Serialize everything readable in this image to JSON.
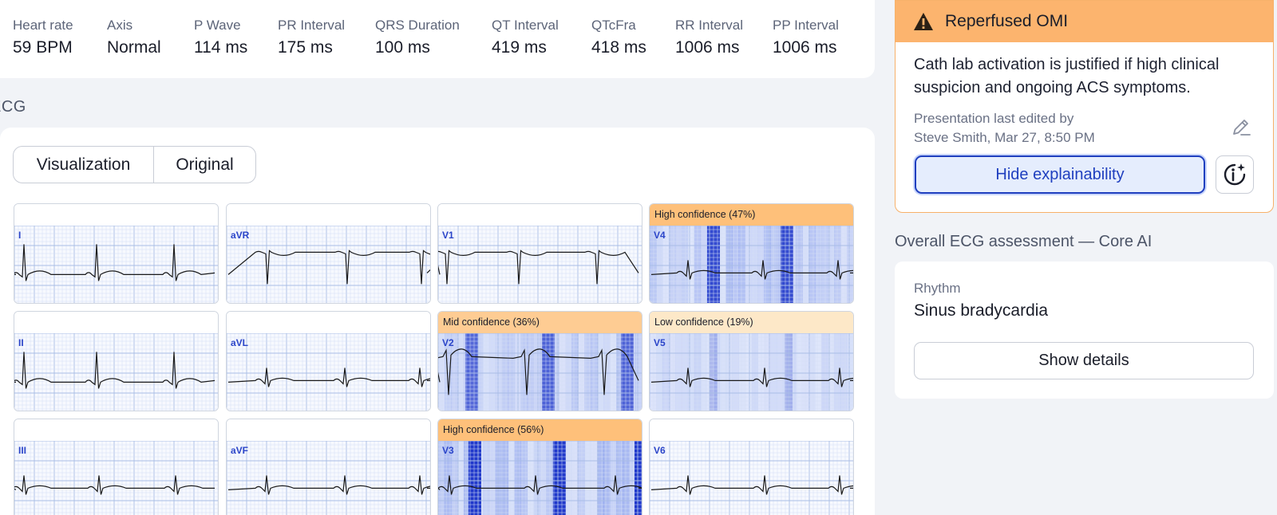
{
  "measurements": [
    {
      "label": "Heart rate",
      "value": "59 BPM"
    },
    {
      "label": "Axis",
      "value": "Normal"
    },
    {
      "label": "P Wave",
      "value": "114 ms"
    },
    {
      "label": "PR Interval",
      "value": "175 ms"
    },
    {
      "label": "QRS Duration",
      "value": "100 ms"
    },
    {
      "label": "QT Interval",
      "value": "419 ms"
    },
    {
      "label": "QTcFra",
      "value": "418 ms"
    },
    {
      "label": "RR Interval",
      "value": "1006 ms"
    },
    {
      "label": "PP Interval",
      "value": "1006 ms"
    }
  ],
  "ecg": {
    "section_title": "ECG",
    "view_options": [
      "Visualization",
      "Original"
    ],
    "leads": [
      {
        "name": "I",
        "confidence_label": "",
        "level": "none"
      },
      {
        "name": "aVR",
        "confidence_label": "",
        "level": "none"
      },
      {
        "name": "V1",
        "confidence_label": "",
        "level": "none"
      },
      {
        "name": "V4",
        "confidence_label": "High confidence (47%)",
        "level": "high",
        "percent": 47
      },
      {
        "name": "II",
        "confidence_label": "",
        "level": "none"
      },
      {
        "name": "aVL",
        "confidence_label": "",
        "level": "none"
      },
      {
        "name": "V2",
        "confidence_label": "Mid confidence (36%)",
        "level": "mid",
        "percent": 36
      },
      {
        "name": "V5",
        "confidence_label": "Low confidence (19%)",
        "level": "low",
        "percent": 19
      },
      {
        "name": "III",
        "confidence_label": "",
        "level": "none"
      },
      {
        "name": "aVF",
        "confidence_label": "",
        "level": "none"
      },
      {
        "name": "V3",
        "confidence_label": "High confidence (56%)",
        "level": "high",
        "percent": 56
      },
      {
        "name": "V6",
        "confidence_label": "",
        "level": "none"
      }
    ]
  },
  "alert": {
    "title": "Reperfused OMI",
    "body": "Cath lab activation is justified if high clinical suspicion and ongoing ACS symptoms.",
    "edited_line1": "Presentation last edited by",
    "edited_line2": "Steve Smith, Mar 27, 8:50 PM",
    "hide_button": "Hide explainability",
    "header_color": "#fcb46e",
    "accent_color": "#1f3fbf"
  },
  "assessment": {
    "title": "Overall ECG assessment — Core AI",
    "rhythm_label": "Rhythm",
    "rhythm_value": "Sinus bradycardia",
    "details_button": "Show details"
  }
}
